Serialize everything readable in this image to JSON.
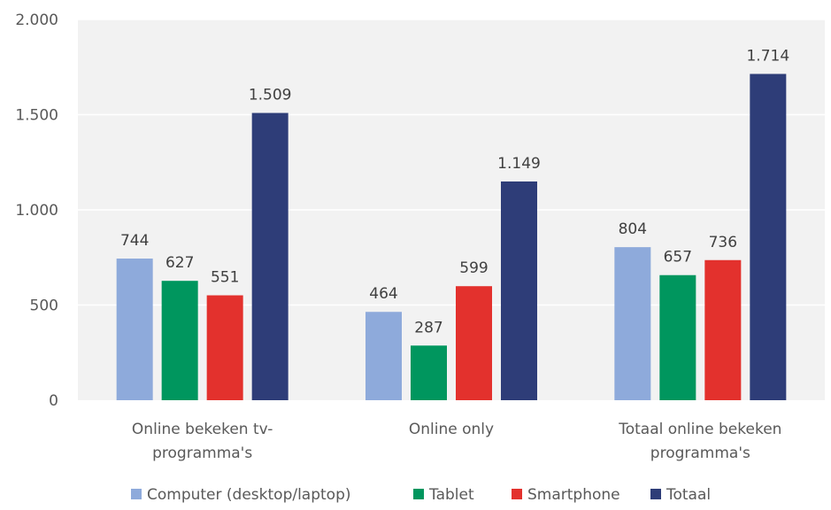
{
  "colors": {
    "plot_background": "#f2f2f2",
    "gridline": "#ffffff",
    "text": "#595959"
  },
  "chart_data": {
    "type": "bar",
    "title": "",
    "xlabel": "",
    "ylabel": "",
    "ylim": [
      0,
      2000
    ],
    "y_ticks": [
      0,
      500,
      1000,
      1500,
      2000
    ],
    "y_tick_labels": [
      "0",
      "500",
      "1.000",
      "1.500",
      "2.000"
    ],
    "grid": true,
    "legend_position": "bottom",
    "categories": [
      [
        "Online bekeken tv-",
        "programma's"
      ],
      [
        "Online only"
      ],
      [
        "Totaal online bekeken",
        "programma's"
      ]
    ],
    "series": [
      {
        "name": "Computer (desktop/laptop)",
        "color": "#8eaadb",
        "values": [
          744,
          464,
          804
        ],
        "labels": [
          "744",
          "464",
          "804"
        ]
      },
      {
        "name": "Tablet",
        "color": "#00965e",
        "values": [
          627,
          287,
          657
        ],
        "labels": [
          "627",
          "287",
          "657"
        ]
      },
      {
        "name": "Smartphone",
        "color": "#e3312d",
        "values": [
          551,
          599,
          736
        ],
        "labels": [
          "551",
          "599",
          "736"
        ]
      },
      {
        "name": "Totaal",
        "color": "#2e3d78",
        "values": [
          1509,
          1149,
          1714
        ],
        "labels": [
          "1.509",
          "1.149",
          "1.714"
        ]
      }
    ]
  }
}
